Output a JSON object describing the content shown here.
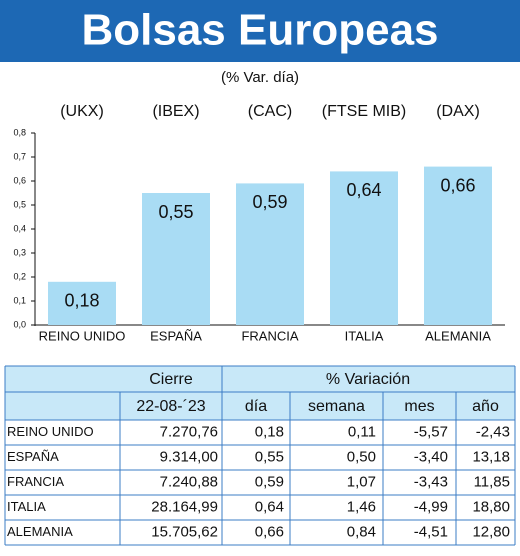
{
  "chart_data": {
    "type": "bar",
    "title": "Bolsas Europeas",
    "subtitle": "(% Var. día)",
    "tickers": [
      "(UKX)",
      "(IBEX)",
      "(CAC)",
      "(FTSE MIB)",
      "(DAX)"
    ],
    "categories": [
      "REINO UNIDO",
      "ESPAÑA",
      "FRANCIA",
      "ITALIA",
      "ALEMANIA"
    ],
    "values": [
      0.18,
      0.55,
      0.59,
      0.64,
      0.66
    ],
    "value_labels": [
      "0,18",
      "0,55",
      "0,59",
      "0,64",
      "0,66"
    ],
    "color": "#a9dcf4",
    "ylim": [
      0,
      0.8
    ],
    "yticks": [
      {
        "value": 0,
        "label": "0,0"
      },
      {
        "value": 0.1,
        "label": "0,1"
      },
      {
        "value": 0.2,
        "label": "0,2"
      },
      {
        "value": 0.3,
        "label": "0,3"
      },
      {
        "value": 0.4,
        "label": "0,4"
      },
      {
        "value": 0.5,
        "label": "0,5"
      },
      {
        "value": 0.6,
        "label": "0,6"
      },
      {
        "value": 0.7,
        "label": "0,7"
      },
      {
        "value": 0.8,
        "label": "0,8"
      }
    ],
    "grid": false
  },
  "table": {
    "group_headers": [
      "Cierre",
      "% Variación"
    ],
    "headers": [
      "22-08-´23",
      "día",
      "semana",
      "mes",
      "año"
    ],
    "rows": [
      [
        "REINO UNIDO",
        "7.270,76",
        "0,18",
        "0,11",
        "-5,57",
        "-2,43"
      ],
      [
        "ESPAÑA",
        "9.314,00",
        "0,55",
        "0,50",
        "-3,40",
        "13,18"
      ],
      [
        "FRANCIA",
        "7.240,88",
        "0,59",
        "1,07",
        "-3,43",
        "11,85"
      ],
      [
        "ITALIA",
        "28.164,99",
        "0,64",
        "1,46",
        "-4,99",
        "18,80"
      ],
      [
        "ALEMANIA",
        "15.705,62",
        "0,66",
        "0,84",
        "-4,51",
        "12,80"
      ]
    ]
  }
}
